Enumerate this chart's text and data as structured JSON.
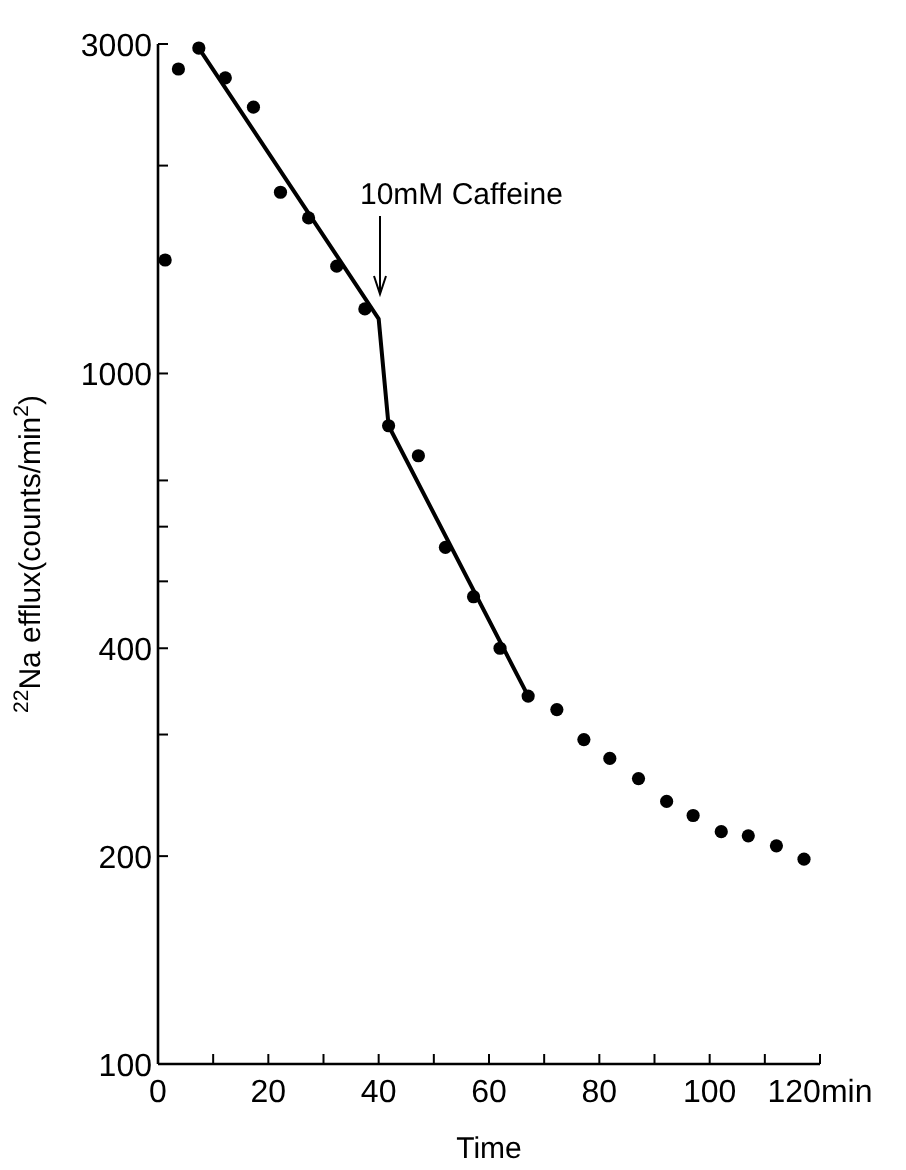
{
  "chart_data": {
    "type": "scatter",
    "xlabel": "Time",
    "ylabel": "$^{22}$Na efflux(counts/min$^{2}$)",
    "log": "y",
    "marker": "circle",
    "grid": false,
    "xlim": [
      0,
      120
    ],
    "xticks": [
      0,
      {
        "value": 10,
        "label": null
      },
      20,
      {
        "value": 30,
        "label": null
      },
      40,
      {
        "value": 50,
        "label": null
      },
      60,
      {
        "value": 70,
        "label": null
      },
      80,
      {
        "value": 90,
        "label": null
      },
      100,
      {
        "value": 110,
        "label": null
      },
      {
        "value": 120,
        "label": "120min"
      }
    ],
    "ylim": [
      100,
      3000
    ],
    "yticks": [
      100,
      200,
      {
        "value": 300,
        "label": null
      },
      400,
      {
        "value": 500,
        "label": null
      },
      {
        "value": 600,
        "label": null
      },
      {
        "value": 700,
        "label": null
      },
      1000,
      {
        "value": 2000,
        "label": null
      },
      3000
    ],
    "annotations": [
      "10mM Caffeine"
    ],
    "series": [
      {
        "color": "#000000",
        "x": [
          1.3,
          3.7,
          7.4,
          12.2,
          17.3,
          22.2,
          27.3,
          32.4,
          37.5,
          41.8,
          47.2,
          52.1,
          57.2,
          62.0,
          67.1,
          72.3,
          77.2,
          81.9,
          87.1,
          92.2,
          97.0,
          102.1,
          107.0,
          112.1,
          117.1
        ],
        "values": [
          1460,
          2760,
          2960,
          2680,
          2430,
          1830,
          1680,
          1430,
          1240,
          840,
          760,
          560,
          475,
          400,
          341,
          326,
          295,
          277,
          259,
          240,
          229,
          217,
          214,
          207,
          198
        ]
      },
      {
        "type": "line",
        "color": "#000000",
        "marker": "none",
        "x": [
          7.4,
          40,
          41.8,
          67.1
        ],
        "values": [
          2960,
          1200,
          840,
          341
        ]
      }
    ]
  }
}
